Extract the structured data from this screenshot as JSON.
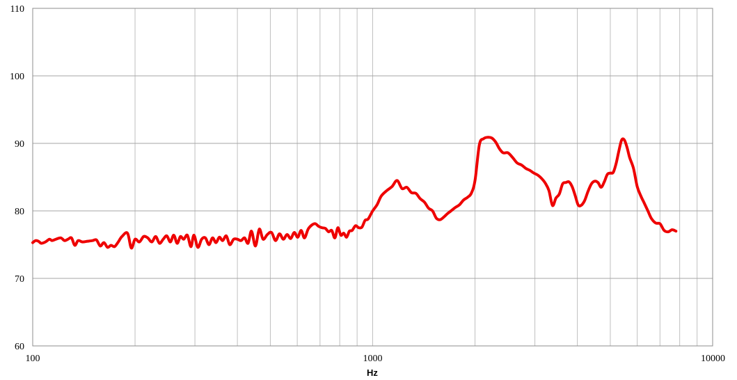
{
  "chart_data": {
    "type": "line",
    "title": "",
    "xlabel": "Hz",
    "ylabel": "",
    "x_scale": "log",
    "xlim": [
      100,
      10000
    ],
    "ylim": [
      60,
      110
    ],
    "x_tick_labels": [
      "100",
      "1000",
      "10000"
    ],
    "y_tick_labels": [
      "60",
      "70",
      "80",
      "90",
      "100",
      "110"
    ],
    "grid": true,
    "legend": "none",
    "series": [
      {
        "color": "#ee0000",
        "points": [
          [
            100,
            75.3
          ],
          [
            102,
            75.6
          ],
          [
            104,
            75.5
          ],
          [
            106,
            75.2
          ],
          [
            109,
            75.4
          ],
          [
            112,
            75.8
          ],
          [
            114,
            75.6
          ],
          [
            117,
            75.8
          ],
          [
            121,
            76.0
          ],
          [
            124,
            75.6
          ],
          [
            127,
            75.8
          ],
          [
            130,
            76.0
          ],
          [
            133,
            74.9
          ],
          [
            136,
            75.6
          ],
          [
            140,
            75.4
          ],
          [
            145,
            75.5
          ],
          [
            150,
            75.6
          ],
          [
            154,
            75.7
          ],
          [
            158,
            74.8
          ],
          [
            162,
            75.3
          ],
          [
            166,
            74.6
          ],
          [
            170,
            74.9
          ],
          [
            174,
            74.7
          ],
          [
            178,
            75.3
          ],
          [
            183,
            76.2
          ],
          [
            190,
            76.7
          ],
          [
            195,
            74.5
          ],
          [
            200,
            75.8
          ],
          [
            206,
            75.4
          ],
          [
            212,
            76.2
          ],
          [
            218,
            76.0
          ],
          [
            224,
            75.4
          ],
          [
            230,
            76.2
          ],
          [
            236,
            75.2
          ],
          [
            242,
            75.8
          ],
          [
            248,
            76.3
          ],
          [
            254,
            75.4
          ],
          [
            260,
            76.4
          ],
          [
            266,
            75.2
          ],
          [
            272,
            76.2
          ],
          [
            278,
            75.8
          ],
          [
            285,
            76.4
          ],
          [
            292,
            74.7
          ],
          [
            298,
            76.4
          ],
          [
            306,
            74.6
          ],
          [
            314,
            75.8
          ],
          [
            322,
            76.0
          ],
          [
            330,
            75.0
          ],
          [
            338,
            76.0
          ],
          [
            346,
            75.3
          ],
          [
            354,
            76.1
          ],
          [
            362,
            75.6
          ],
          [
            371,
            76.3
          ],
          [
            380,
            75.0
          ],
          [
            390,
            75.8
          ],
          [
            400,
            75.8
          ],
          [
            410,
            75.6
          ],
          [
            420,
            76.0
          ],
          [
            430,
            75.2
          ],
          [
            440,
            77.0
          ],
          [
            452,
            74.8
          ],
          [
            464,
            77.3
          ],
          [
            476,
            75.8
          ],
          [
            490,
            76.5
          ],
          [
            504,
            76.8
          ],
          [
            518,
            75.6
          ],
          [
            532,
            76.6
          ],
          [
            546,
            75.8
          ],
          [
            560,
            76.5
          ],
          [
            574,
            75.9
          ],
          [
            588,
            76.8
          ],
          [
            602,
            76.1
          ],
          [
            616,
            77.1
          ],
          [
            630,
            76.0
          ],
          [
            646,
            77.3
          ],
          [
            662,
            77.9
          ],
          [
            678,
            78.1
          ],
          [
            694,
            77.7
          ],
          [
            710,
            77.5
          ],
          [
            726,
            77.4
          ],
          [
            742,
            76.9
          ],
          [
            758,
            77.1
          ],
          [
            774,
            76.0
          ],
          [
            790,
            77.5
          ],
          [
            806,
            76.4
          ],
          [
            822,
            76.7
          ],
          [
            838,
            76.1
          ],
          [
            854,
            77.0
          ],
          [
            870,
            77.1
          ],
          [
            890,
            77.8
          ],
          [
            910,
            77.5
          ],
          [
            930,
            77.6
          ],
          [
            950,
            78.6
          ],
          [
            970,
            78.8
          ],
          [
            1000,
            80.0
          ],
          [
            1030,
            80.9
          ],
          [
            1060,
            82.2
          ],
          [
            1100,
            83.0
          ],
          [
            1140,
            83.6
          ],
          [
            1180,
            84.5
          ],
          [
            1220,
            83.3
          ],
          [
            1260,
            83.5
          ],
          [
            1300,
            82.7
          ],
          [
            1340,
            82.6
          ],
          [
            1380,
            81.8
          ],
          [
            1420,
            81.3
          ],
          [
            1460,
            80.4
          ],
          [
            1500,
            80.0
          ],
          [
            1540,
            78.9
          ],
          [
            1580,
            78.7
          ],
          [
            1620,
            79.1
          ],
          [
            1660,
            79.6
          ],
          [
            1700,
            80.0
          ],
          [
            1750,
            80.5
          ],
          [
            1800,
            80.9
          ],
          [
            1850,
            81.6
          ],
          [
            1900,
            82.0
          ],
          [
            1950,
            82.6
          ],
          [
            2000,
            84.5
          ],
          [
            2060,
            89.8
          ],
          [
            2120,
            90.7
          ],
          [
            2180,
            90.9
          ],
          [
            2240,
            90.8
          ],
          [
            2300,
            90.2
          ],
          [
            2360,
            89.2
          ],
          [
            2420,
            88.6
          ],
          [
            2500,
            88.6
          ],
          [
            2580,
            87.9
          ],
          [
            2660,
            87.1
          ],
          [
            2740,
            86.8
          ],
          [
            2820,
            86.3
          ],
          [
            2900,
            86.0
          ],
          [
            2980,
            85.6
          ],
          [
            3060,
            85.3
          ],
          [
            3140,
            84.8
          ],
          [
            3220,
            84.1
          ],
          [
            3300,
            83.0
          ],
          [
            3380,
            80.8
          ],
          [
            3460,
            81.9
          ],
          [
            3540,
            82.5
          ],
          [
            3620,
            84.0
          ],
          [
            3700,
            84.2
          ],
          [
            3780,
            84.3
          ],
          [
            3860,
            83.6
          ],
          [
            3940,
            82.3
          ],
          [
            4020,
            80.9
          ],
          [
            4100,
            80.8
          ],
          [
            4200,
            81.5
          ],
          [
            4300,
            82.9
          ],
          [
            4400,
            84.0
          ],
          [
            4500,
            84.4
          ],
          [
            4600,
            84.2
          ],
          [
            4700,
            83.5
          ],
          [
            4800,
            84.3
          ],
          [
            4900,
            85.4
          ],
          [
            5000,
            85.6
          ],
          [
            5100,
            85.7
          ],
          [
            5200,
            87.0
          ],
          [
            5300,
            88.9
          ],
          [
            5400,
            90.5
          ],
          [
            5500,
            90.5
          ],
          [
            5600,
            89.4
          ],
          [
            5700,
            87.9
          ],
          [
            5850,
            86.3
          ],
          [
            6000,
            83.6
          ],
          [
            6150,
            82.2
          ],
          [
            6300,
            81.1
          ],
          [
            6450,
            80.0
          ],
          [
            6600,
            78.9
          ],
          [
            6800,
            78.2
          ],
          [
            7000,
            78.1
          ],
          [
            7200,
            77.1
          ],
          [
            7400,
            76.9
          ],
          [
            7600,
            77.2
          ],
          [
            7800,
            77.0
          ]
        ]
      }
    ]
  }
}
